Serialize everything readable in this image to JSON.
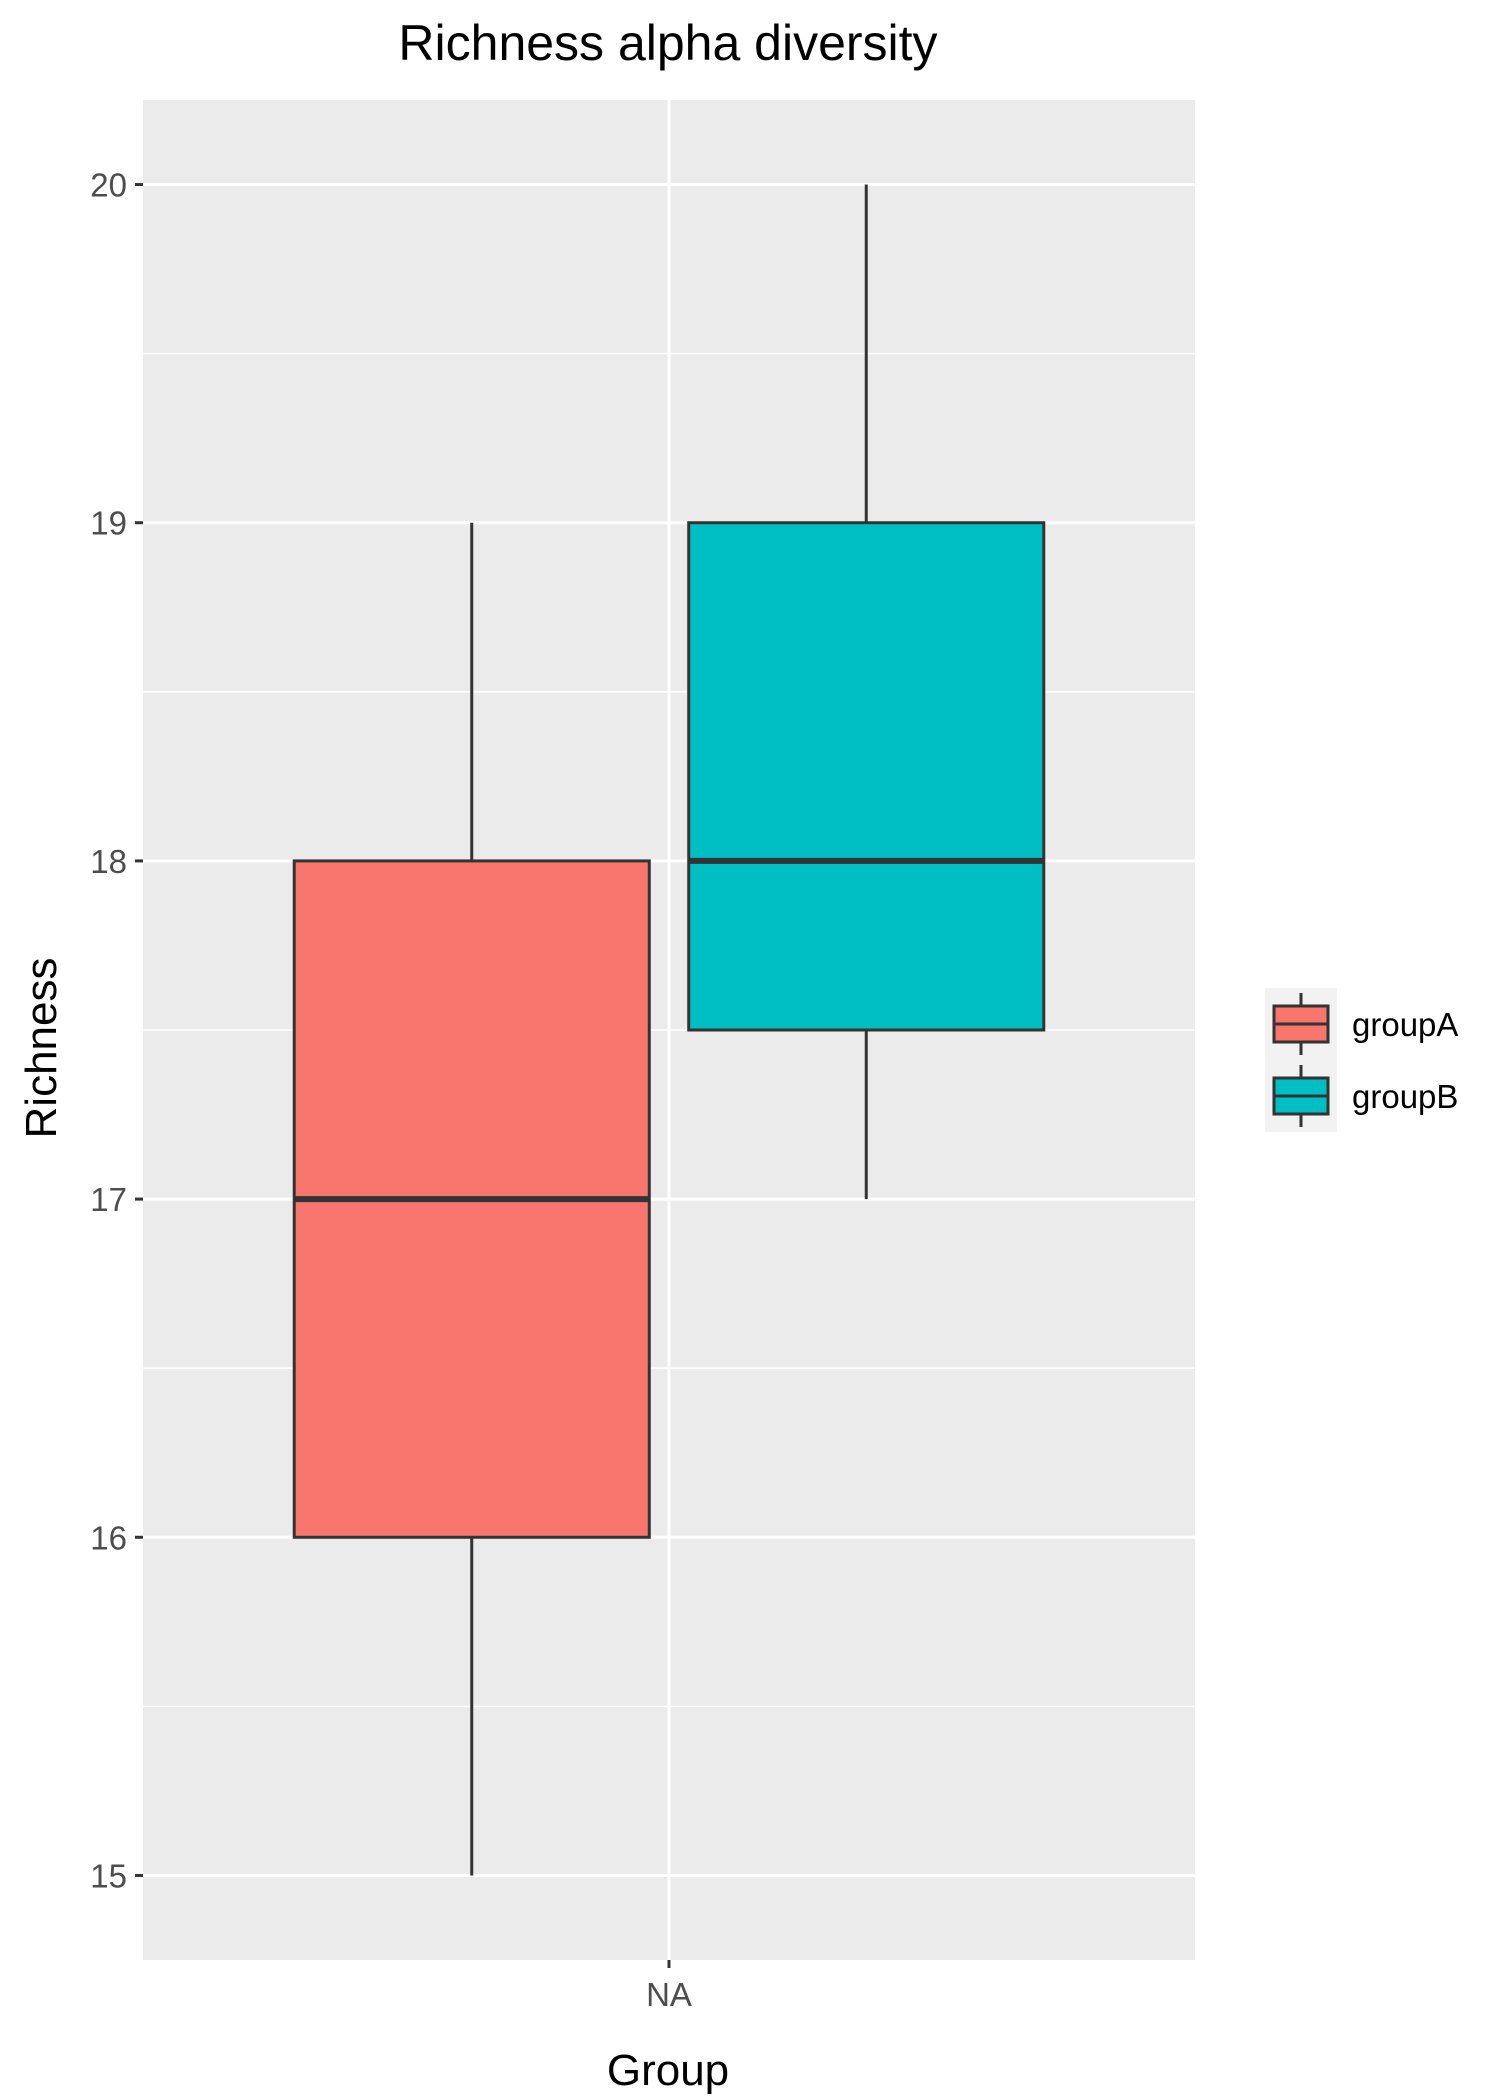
{
  "chart_data": {
    "type": "boxplot",
    "title": "Richness alpha diversity",
    "xlabel": "Group",
    "ylabel": "Richness",
    "categories": [
      "NA"
    ],
    "ylim": [
      14.75,
      20.25
    ],
    "y_ticks": [
      15,
      16,
      17,
      18,
      19,
      20
    ],
    "grid": true,
    "legend_position": "right",
    "series": [
      {
        "name": "groupA",
        "color": "#F8766D",
        "category": "NA",
        "whisker_low": 15,
        "q1": 16,
        "median": 17,
        "q3": 18,
        "whisker_high": 19
      },
      {
        "name": "groupB",
        "color": "#00BFC4",
        "category": "NA",
        "whisker_low": 17,
        "q1": 17.5,
        "median": 18,
        "q3": 19,
        "whisker_high": 20
      }
    ],
    "colors": {
      "panel_background": "#EBEBEB",
      "grid_line": "#FFFFFF",
      "box_outline": "#333333",
      "axis_text": "#4D4D4D",
      "legend_key_background": "#F2F2F2"
    }
  }
}
